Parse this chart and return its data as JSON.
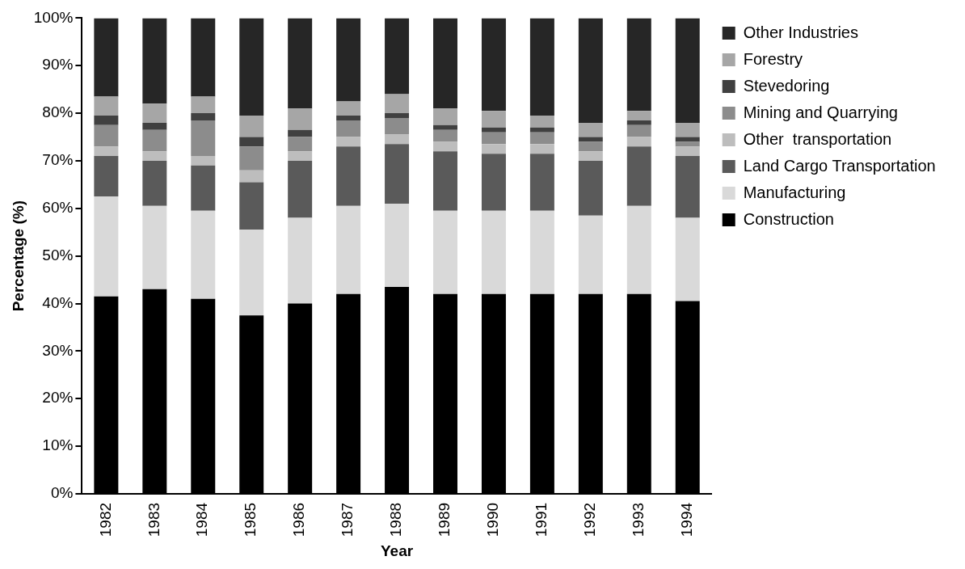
{
  "chart_data": {
    "type": "bar",
    "stacked": true,
    "xlabel": "Year",
    "ylabel": "Percentage (%)",
    "categories": [
      "1982",
      "1983",
      "1984",
      "1985",
      "1986",
      "1987",
      "1988",
      "1989",
      "1990",
      "1991",
      "1992",
      "1993",
      "1994"
    ],
    "ylim": [
      0,
      100
    ],
    "yticks": [
      {
        "value": 0,
        "label": "0%"
      },
      {
        "value": 10,
        "label": "10%"
      },
      {
        "value": 20,
        "label": "20%"
      },
      {
        "value": 30,
        "label": "30%"
      },
      {
        "value": 40,
        "label": "40%"
      },
      {
        "value": 50,
        "label": "50%"
      },
      {
        "value": 60,
        "label": "60%"
      },
      {
        "value": 70,
        "label": "70%"
      },
      {
        "value": 80,
        "label": "80%"
      },
      {
        "value": 90,
        "label": "90%"
      },
      {
        "value": 100,
        "label": "100%"
      }
    ],
    "grid": false,
    "legend": "right",
    "series": [
      {
        "name": "Construction",
        "color": "#000000",
        "values": [
          41.5,
          43,
          41,
          37.5,
          40,
          42,
          43.5,
          42,
          42,
          42,
          42,
          42,
          40.5
        ]
      },
      {
        "name": "Manufacturing",
        "color": "#d9d9d9",
        "values": [
          21,
          17.5,
          18.5,
          18,
          18,
          18.5,
          17.5,
          17.5,
          17.5,
          17.5,
          16.5,
          18.5,
          17.5
        ]
      },
      {
        "name": "Land Cargo Transportation",
        "color": "#5a5a5a",
        "values": [
          8.5,
          9.5,
          9.5,
          10,
          12,
          12.5,
          12.5,
          12.5,
          12,
          12,
          11.5,
          12.5,
          13
        ]
      },
      {
        "name": "Other  transportation",
        "color": "#bdbdbd",
        "values": [
          2,
          2,
          2,
          2.5,
          2,
          2,
          2,
          2,
          2,
          2,
          2,
          2,
          2
        ]
      },
      {
        "name": "Mining and Quarrying",
        "color": "#8c8c8c",
        "values": [
          4.5,
          4.5,
          7.5,
          5,
          3,
          3.5,
          3.5,
          2.5,
          2.5,
          2.5,
          2,
          2.5,
          1
        ]
      },
      {
        "name": "Stevedoring",
        "color": "#404040",
        "values": [
          2,
          1.5,
          1.5,
          2,
          1.5,
          1,
          1,
          1,
          1,
          1,
          1,
          1,
          1
        ]
      },
      {
        "name": "Forestry",
        "color": "#a6a6a6",
        "values": [
          4,
          4,
          3.5,
          4.5,
          4.5,
          3,
          4,
          3.5,
          3.5,
          2.5,
          3,
          2,
          3
        ]
      },
      {
        "name": "Other Industries",
        "color": "#262626",
        "values": [
          16.5,
          18,
          16.5,
          20.5,
          19,
          17.5,
          16,
          19,
          19.5,
          20.5,
          22,
          19.5,
          22
        ]
      }
    ]
  }
}
